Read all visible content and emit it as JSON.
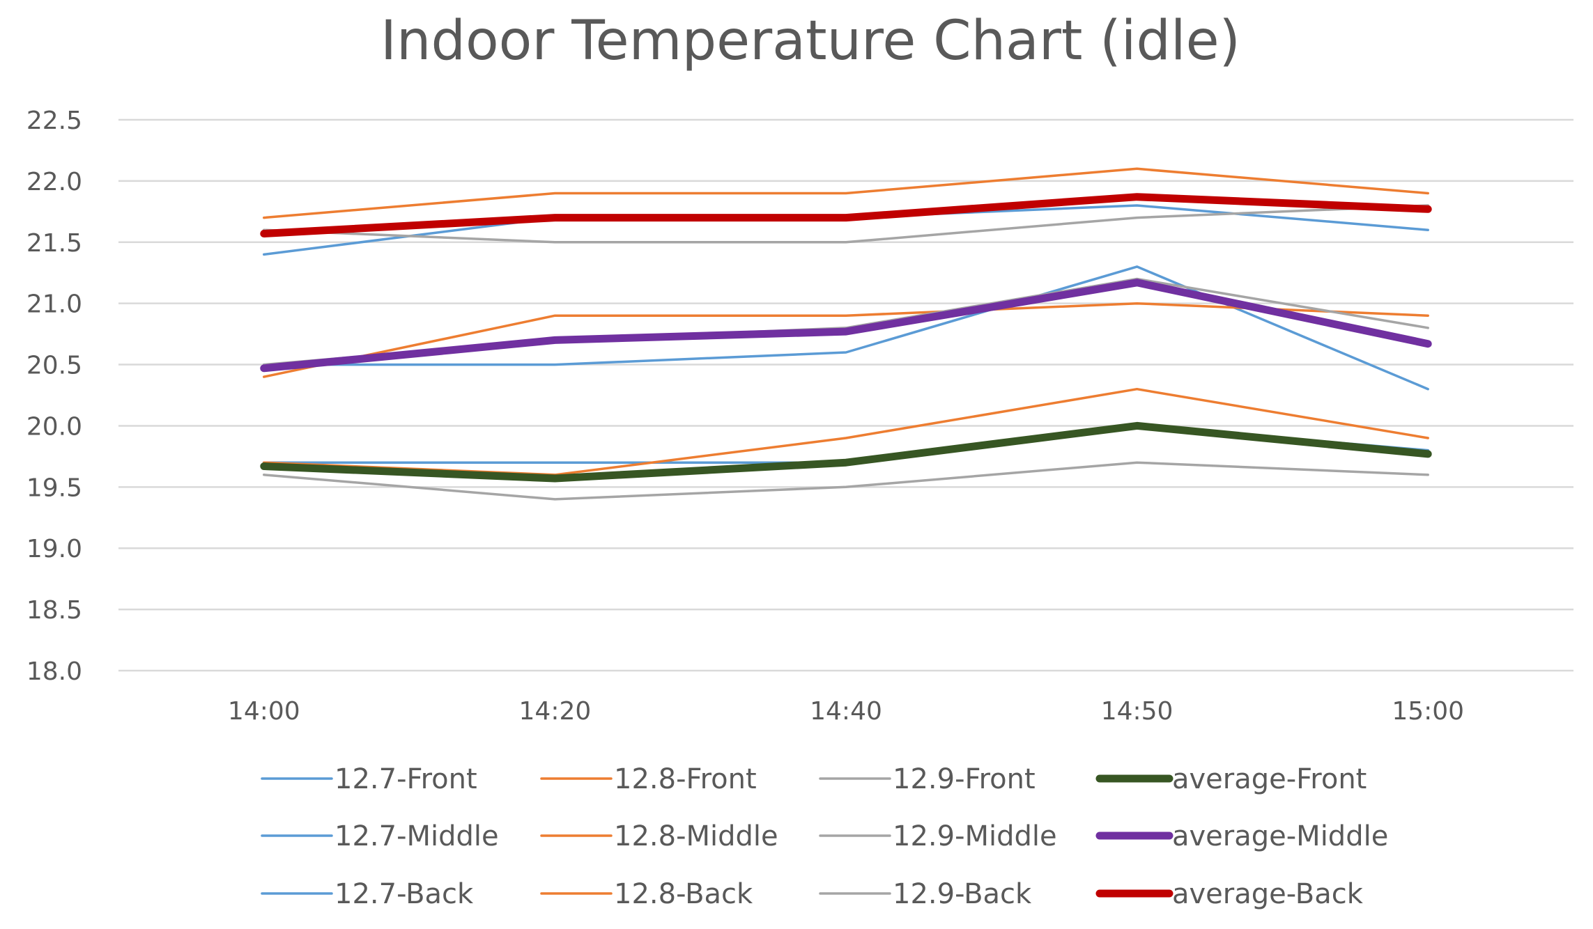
{
  "chart_data": {
    "type": "line",
    "title": "Indoor Temperature Chart (idle)",
    "xlabel": "",
    "ylabel": "",
    "categories": [
      "14:00",
      "14:20",
      "14:40",
      "14:50",
      "15:00"
    ],
    "ylim": [
      18.0,
      22.5
    ],
    "yticks": [
      "22.5",
      "22.0",
      "21.5",
      "21.0",
      "20.5",
      "20.0",
      "19.5",
      "19.0",
      "18.5",
      "18.0"
    ],
    "ytick_values": [
      22.5,
      22.0,
      21.5,
      21.0,
      20.5,
      20.0,
      19.5,
      19.0,
      18.5,
      18.0
    ],
    "grid": true,
    "legend_position": "bottom",
    "series": [
      {
        "name": "12.7-Front",
        "color": "#5B9BD5",
        "weight": "thin",
        "values": [
          19.7,
          19.7,
          19.7,
          20.0,
          19.8
        ]
      },
      {
        "name": "12.8-Front",
        "color": "#ED7D31",
        "weight": "thin",
        "values": [
          19.7,
          19.6,
          19.9,
          20.3,
          19.9
        ]
      },
      {
        "name": "12.9-Front",
        "color": "#A5A5A5",
        "weight": "thin",
        "values": [
          19.6,
          19.4,
          19.5,
          19.7,
          19.6
        ]
      },
      {
        "name": "average-Front",
        "color": "#375623",
        "weight": "thick",
        "values": [
          19.67,
          19.57,
          19.7,
          20.0,
          19.77
        ]
      },
      {
        "name": "12.7-Middle",
        "color": "#5B9BD5",
        "weight": "thin",
        "values": [
          20.5,
          20.5,
          20.6,
          21.3,
          20.3
        ]
      },
      {
        "name": "12.8-Middle",
        "color": "#ED7D31",
        "weight": "thin",
        "values": [
          20.4,
          20.9,
          20.9,
          21.0,
          20.9
        ]
      },
      {
        "name": "12.9-Middle",
        "color": "#A5A5A5",
        "weight": "thin",
        "values": [
          20.5,
          20.7,
          20.8,
          21.2,
          20.8
        ]
      },
      {
        "name": "average-Middle",
        "color": "#7030A0",
        "weight": "thick",
        "values": [
          20.47,
          20.7,
          20.77,
          21.17,
          20.67
        ]
      },
      {
        "name": "12.7-Back",
        "color": "#5B9BD5",
        "weight": "thin",
        "values": [
          21.4,
          21.7,
          21.7,
          21.8,
          21.6
        ]
      },
      {
        "name": "12.8-Back",
        "color": "#ED7D31",
        "weight": "thin",
        "values": [
          21.7,
          21.9,
          21.9,
          22.1,
          21.9
        ]
      },
      {
        "name": "12.9-Back",
        "color": "#A5A5A5",
        "weight": "thin",
        "values": [
          21.6,
          21.5,
          21.5,
          21.7,
          21.8
        ]
      },
      {
        "name": "average-Back",
        "color": "#C00000",
        "weight": "thick",
        "values": [
          21.57,
          21.7,
          21.7,
          21.87,
          21.77
        ]
      }
    ]
  }
}
